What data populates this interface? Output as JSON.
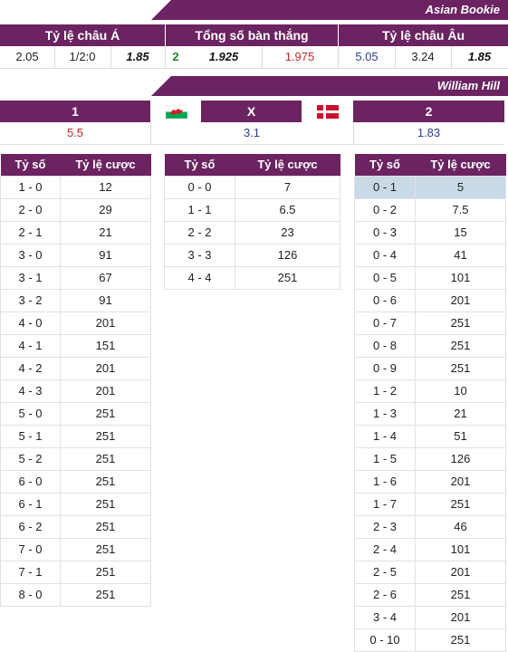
{
  "asian": {
    "bookie": "Asian Bookie",
    "headers": [
      "Tỷ lệ châu Á",
      "Tổng số bàn thắng",
      "Tỷ lệ châu Âu"
    ],
    "asia": [
      "2.05",
      "1/2:0",
      "1.85"
    ],
    "total": [
      "2",
      "1.925",
      "1.975"
    ],
    "euro": [
      "5.05",
      "3.24",
      "1.85"
    ]
  },
  "william": {
    "bookie": "William Hill",
    "headers": [
      "1",
      "X",
      "2"
    ],
    "values": [
      "5.5",
      "3.1",
      "1.83"
    ],
    "flag_home": "wales-flag-icon",
    "flag_away": "denmark-flag-icon"
  },
  "tables": {
    "col_score": "Tỷ số",
    "col_odds": "Tỷ lệ cược",
    "home": [
      [
        "1 - 0",
        "12"
      ],
      [
        "2 - 0",
        "29"
      ],
      [
        "2 - 1",
        "21"
      ],
      [
        "3 - 0",
        "91"
      ],
      [
        "3 - 1",
        "67"
      ],
      [
        "3 - 2",
        "91"
      ],
      [
        "4 - 0",
        "201"
      ],
      [
        "4 - 1",
        "151"
      ],
      [
        "4 - 2",
        "201"
      ],
      [
        "4 - 3",
        "201"
      ],
      [
        "5 - 0",
        "251"
      ],
      [
        "5 - 1",
        "251"
      ],
      [
        "5 - 2",
        "251"
      ],
      [
        "6 - 0",
        "251"
      ],
      [
        "6 - 1",
        "251"
      ],
      [
        "6 - 2",
        "251"
      ],
      [
        "7 - 0",
        "251"
      ],
      [
        "7 - 1",
        "251"
      ],
      [
        "8 - 0",
        "251"
      ]
    ],
    "draw": [
      [
        "0 - 0",
        "7"
      ],
      [
        "1 - 1",
        "6.5"
      ],
      [
        "2 - 2",
        "23"
      ],
      [
        "3 - 3",
        "126"
      ],
      [
        "4 - 4",
        "251"
      ]
    ],
    "away": [
      [
        "0 - 1",
        "5"
      ],
      [
        "0 - 2",
        "7.5"
      ],
      [
        "0 - 3",
        "15"
      ],
      [
        "0 - 4",
        "41"
      ],
      [
        "0 - 5",
        "101"
      ],
      [
        "0 - 6",
        "201"
      ],
      [
        "0 - 7",
        "251"
      ],
      [
        "0 - 8",
        "251"
      ],
      [
        "0 - 9",
        "251"
      ],
      [
        "1 - 2",
        "10"
      ],
      [
        "1 - 3",
        "21"
      ],
      [
        "1 - 4",
        "51"
      ],
      [
        "1 - 5",
        "126"
      ],
      [
        "1 - 6",
        "201"
      ],
      [
        "1 - 7",
        "251"
      ],
      [
        "2 - 3",
        "46"
      ],
      [
        "2 - 4",
        "101"
      ],
      [
        "2 - 5",
        "201"
      ],
      [
        "2 - 6",
        "251"
      ],
      [
        "3 - 4",
        "201"
      ],
      [
        "0 - 10",
        "251"
      ]
    ]
  },
  "colors": {
    "header_bg": "#6b2361",
    "highlight": "#c9d9e5",
    "red": "#c3272b",
    "blue": "#2c3f8f",
    "green": "#2a7d2a"
  }
}
